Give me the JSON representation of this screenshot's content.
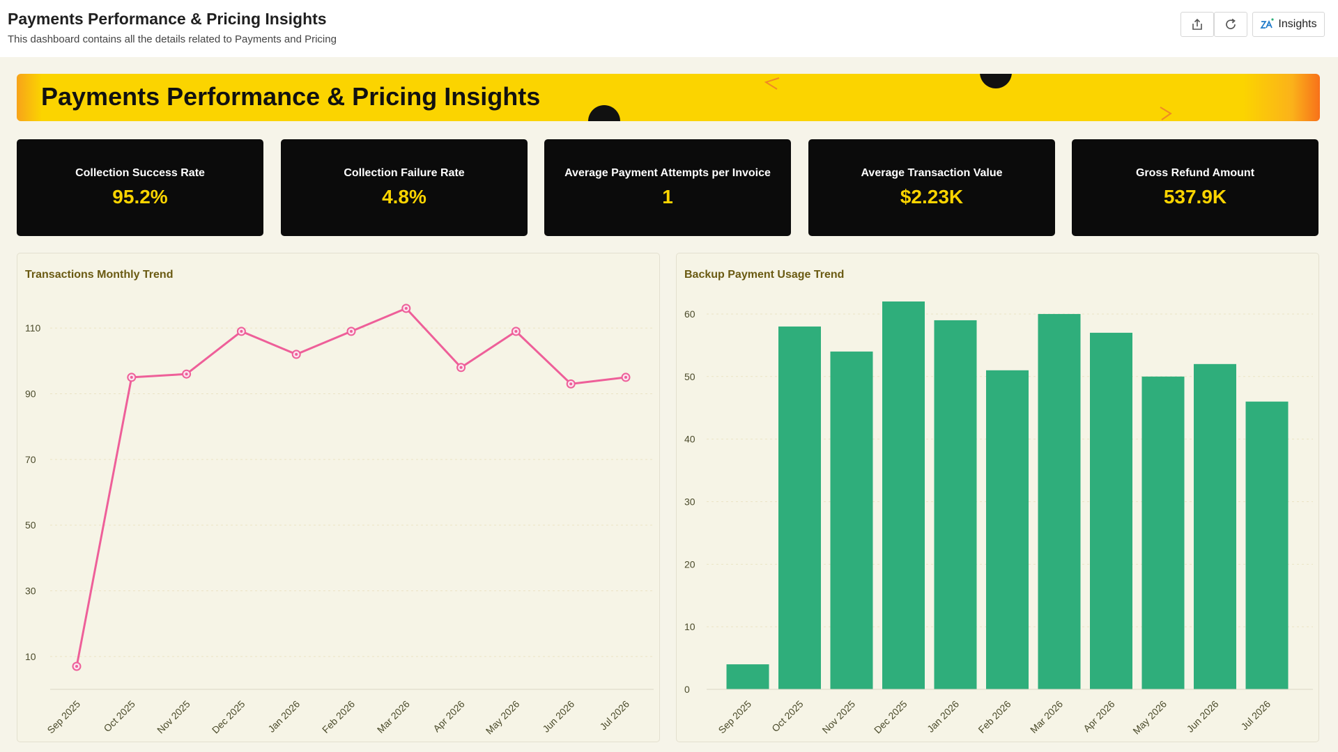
{
  "header": {
    "title": "Payments Performance & Pricing Insights",
    "subtitle": "This dashboard contains all the details related to Payments and Pricing",
    "insights_label": "Insights",
    "icons": [
      "share-icon",
      "refresh-icon",
      "insights-icon"
    ]
  },
  "banner": {
    "title": "Payments Performance & Pricing Insights"
  },
  "kpis": [
    {
      "label": "Collection Success Rate",
      "value": "95.2%"
    },
    {
      "label": "Collection Failure Rate",
      "value": "4.8%"
    },
    {
      "label": "Average Payment Attempts per Invoice",
      "value": "1"
    },
    {
      "label": "Average Transaction Value",
      "value": "$2.23K"
    },
    {
      "label": "Gross Refund Amount",
      "value": "537.9K"
    }
  ],
  "colors": {
    "banner": "#fbd400",
    "kpi_background": "#0b0b0b",
    "kpi_value": "#fbd400",
    "line": "#ee5f99",
    "bar": "#2fae7b",
    "panel_title": "#6a5a12"
  },
  "chart_data": [
    {
      "type": "line",
      "title": "Transactions Monthly Trend",
      "categories": [
        "Sep 2025",
        "Oct 2025",
        "Nov 2025",
        "Dec 2025",
        "Jan 2026",
        "Feb 2026",
        "Mar 2026",
        "Apr 2026",
        "May 2026",
        "Jun 2026",
        "Jul 2026"
      ],
      "series": [
        {
          "values": [
            7,
            95,
            96,
            109,
            102,
            109,
            116,
            98,
            109,
            93,
            95
          ]
        }
      ],
      "yticks": [
        10,
        30,
        50,
        70,
        90,
        110
      ],
      "ylim": [
        0,
        120
      ],
      "grid": true,
      "legend": "none"
    },
    {
      "type": "bar",
      "title": "Backup Payment Usage Trend",
      "categories": [
        "Sep 2025",
        "Oct 2025",
        "Nov 2025",
        "Dec 2025",
        "Jan 2026",
        "Feb 2026",
        "Mar 2026",
        "Apr 2026",
        "May 2026",
        "Jun 2026",
        "Jul 2026"
      ],
      "values": [
        4,
        58,
        54,
        62,
        59,
        51,
        60,
        57,
        50,
        52,
        46
      ],
      "yticks": [
        0,
        10,
        20,
        30,
        40,
        50,
        60
      ],
      "ylim": [
        0,
        63
      ],
      "grid": true,
      "legend": "none"
    }
  ]
}
